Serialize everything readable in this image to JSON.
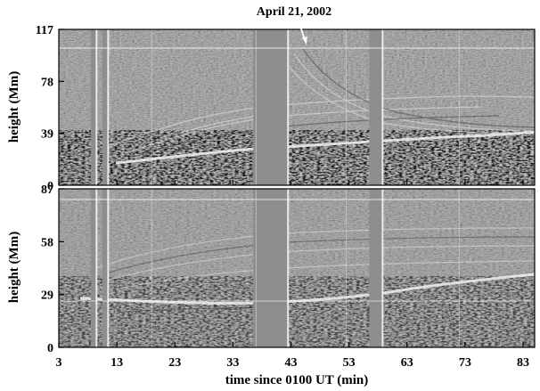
{
  "chart_data": {
    "type": "heatmap",
    "title": "April 21, 2002",
    "xlabel": "time since 0100 UT (min)",
    "x_ticks": [
      3,
      13,
      23,
      33,
      43,
      53,
      63,
      73,
      83
    ],
    "xlim": [
      3,
      85
    ],
    "panels": [
      {
        "name": "top",
        "ylabel": "height (Mm)",
        "y_ticks": [
          0,
          39,
          78,
          117
        ],
        "ylim": [
          0,
          117
        ],
        "data_gaps": [
          [
            8.5,
            9.5
          ],
          [
            10.5,
            11.5
          ],
          [
            36.5,
            42.5
          ],
          [
            56.5,
            58.8
          ]
        ],
        "annotation": {
          "type": "arrow",
          "x": 45.2,
          "y": 117
        }
      },
      {
        "name": "bottom",
        "ylabel": "height (Mm)",
        "y_ticks": [
          0,
          29,
          58,
          87
        ],
        "ylim": [
          0,
          87
        ],
        "data_gaps": [
          [
            8.5,
            9.5
          ],
          [
            10.5,
            11.5
          ],
          [
            36.5,
            42.5
          ],
          [
            56.5,
            58.8
          ]
        ]
      }
    ]
  }
}
